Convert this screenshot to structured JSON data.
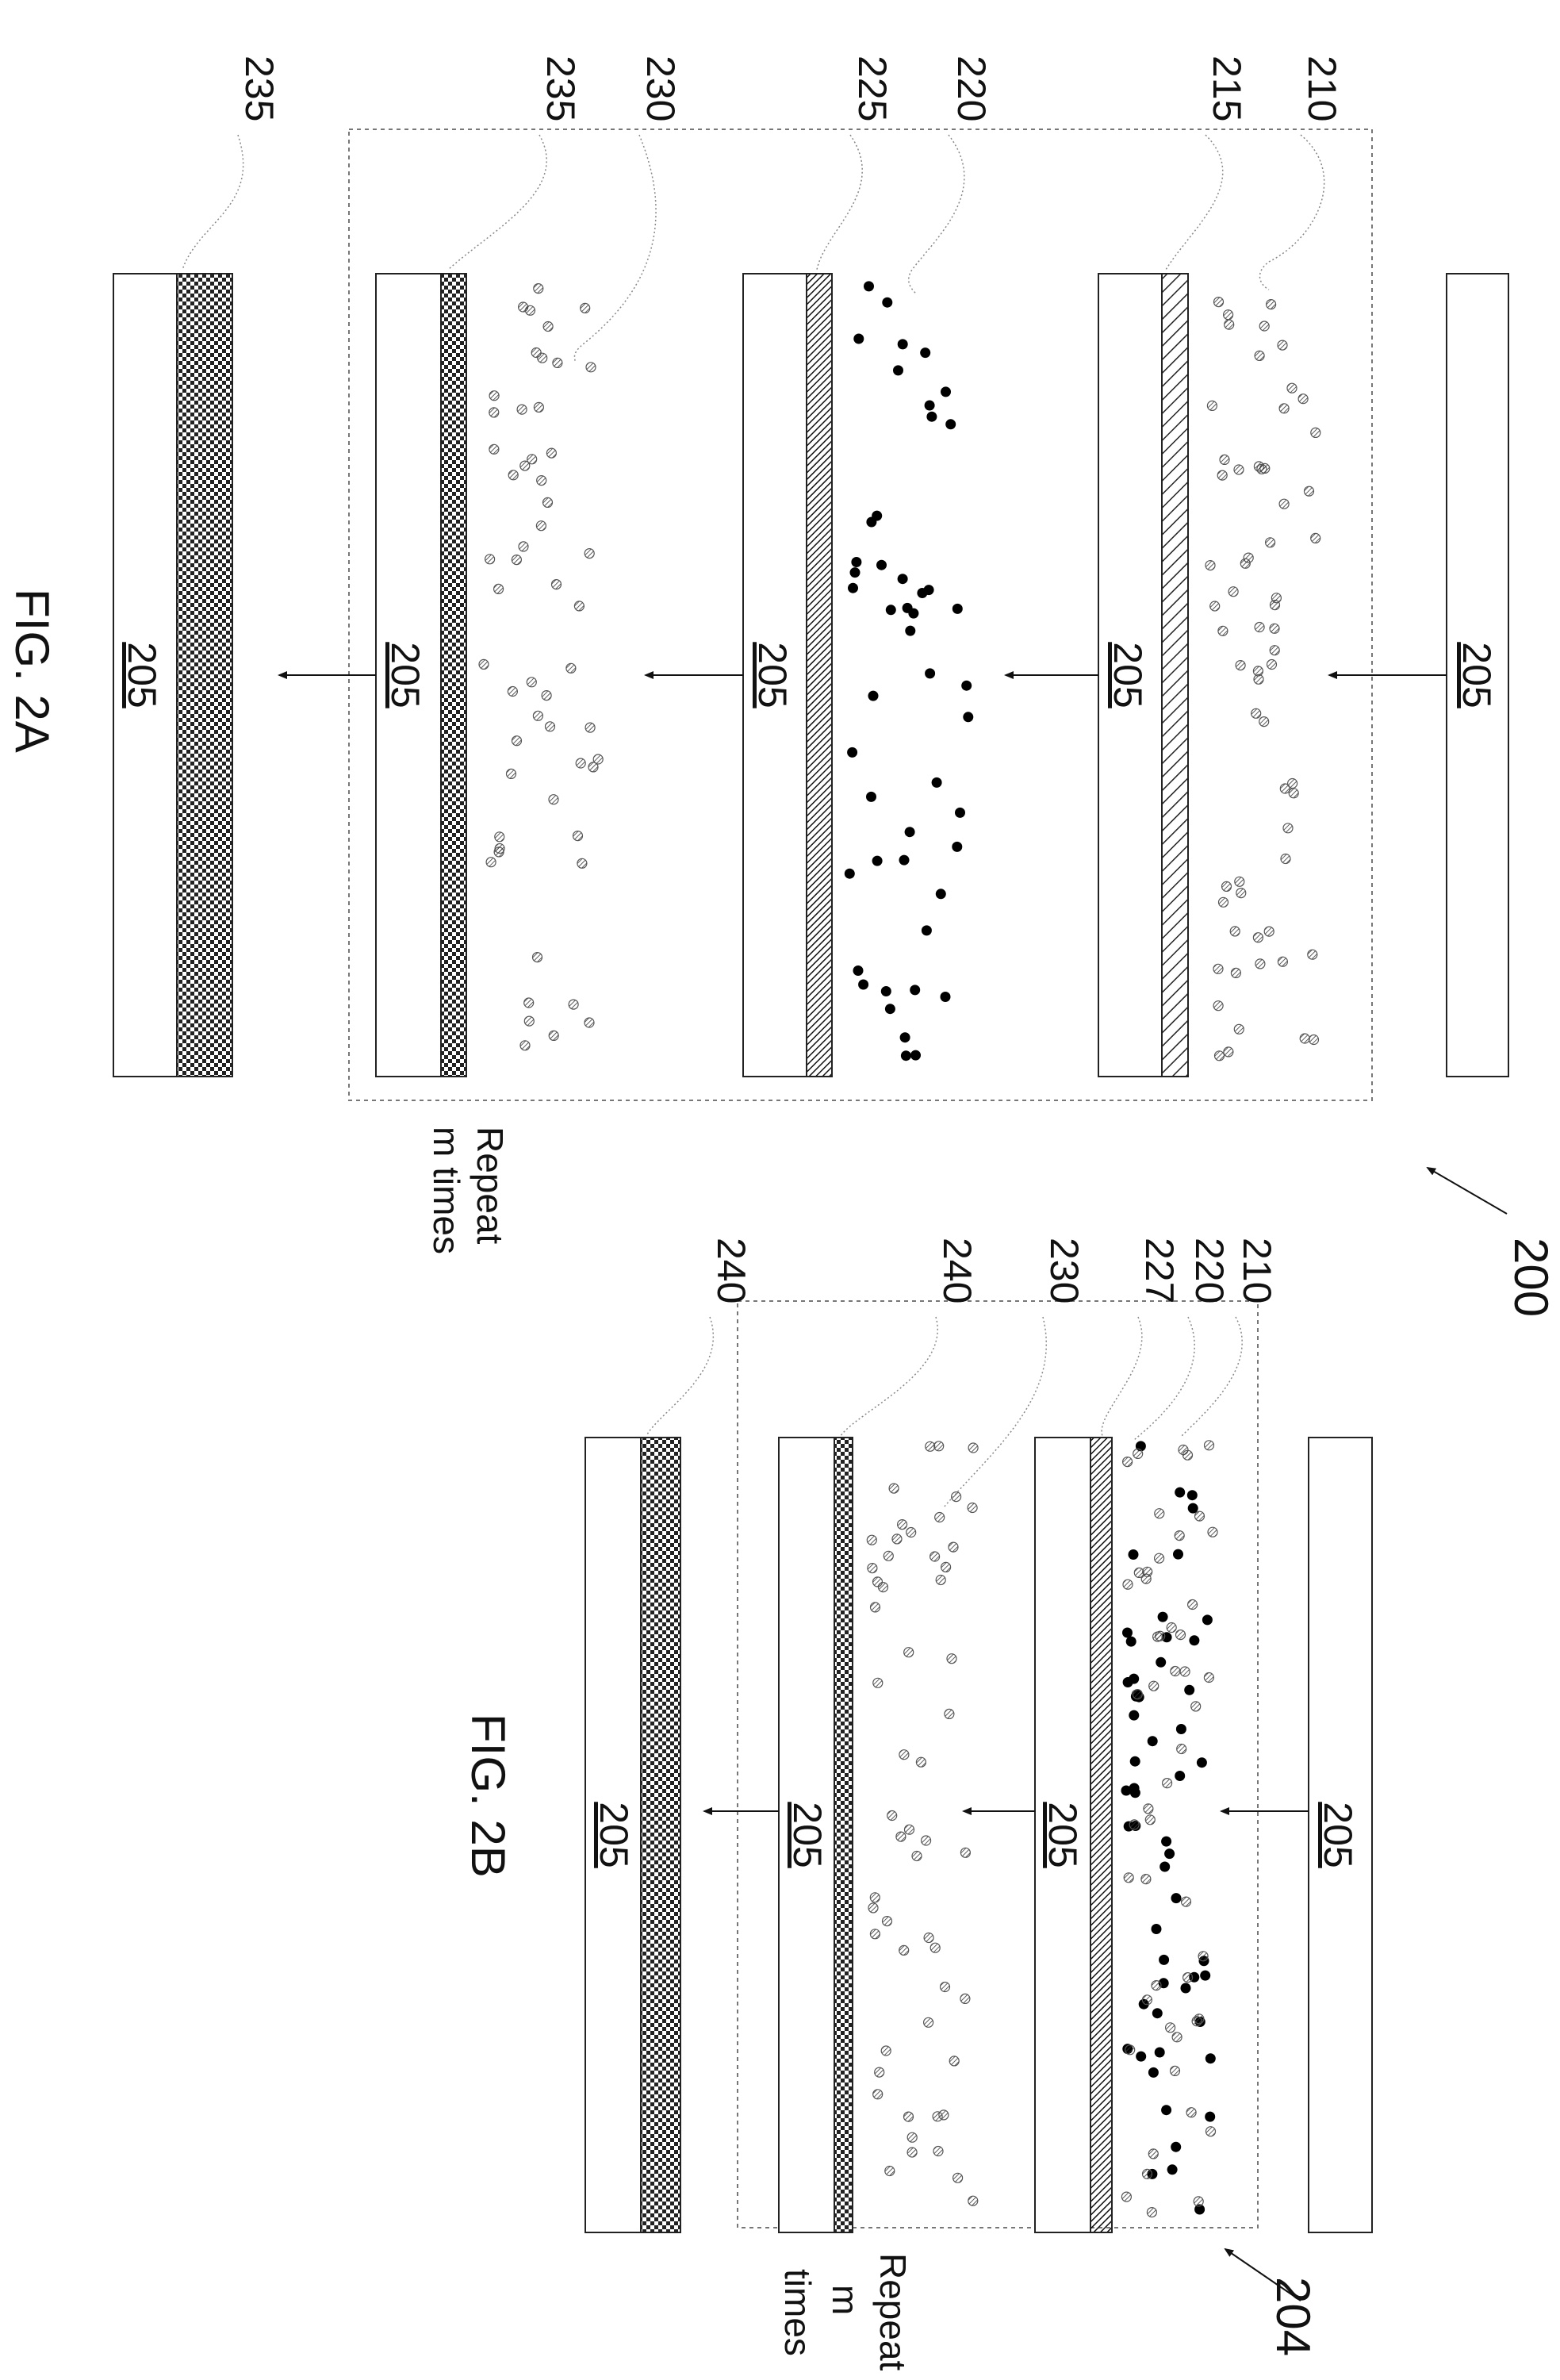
{
  "figure_id": "200",
  "figure_id_b": "204",
  "fig_a": {
    "caption": "FIG. 2A",
    "substrate": "205",
    "repeat_line1": "Repeat",
    "repeat_line2": "m times",
    "refs": {
      "r210": "210",
      "r215": "215",
      "r220": "220",
      "r225": "225",
      "r230": "230",
      "r235_inner": "235",
      "r235_outer": "235"
    }
  },
  "fig_b": {
    "caption": "FIG. 2B",
    "substrate": "205",
    "repeat_line1": "Repeat",
    "repeat_line2": "m",
    "repeat_line3": "times",
    "refs": {
      "r210": "210",
      "r220": "220",
      "r227": "227",
      "r230": "230",
      "r240_inner": "240",
      "r240_outer": "240"
    }
  },
  "legend_colors": {
    "solid_particle": "#000000",
    "hatched_particle": "#555555",
    "line": "#111111"
  }
}
